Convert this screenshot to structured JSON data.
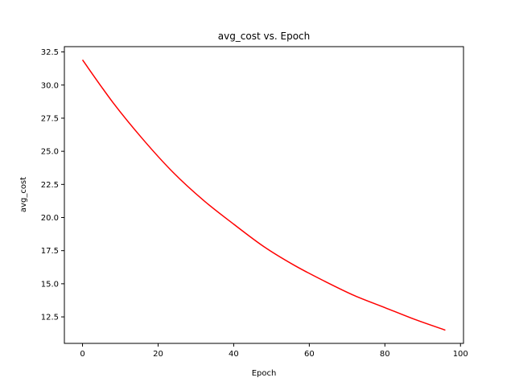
{
  "chart_data": {
    "type": "line",
    "title": "avg_cost vs. Epoch",
    "xlabel": "Epoch",
    "ylabel": "avg_cost",
    "xlim": [
      -4.8,
      100.8
    ],
    "ylim": [
      10.5,
      32.9
    ],
    "xticks": [
      0,
      20,
      40,
      60,
      80,
      100
    ],
    "yticks": [
      12.5,
      15.0,
      17.5,
      20.0,
      22.5,
      25.0,
      27.5,
      30.0,
      32.5
    ],
    "xtick_labels": [
      "0",
      "20",
      "40",
      "60",
      "80",
      "100"
    ],
    "ytick_labels": [
      "12.5",
      "15.0",
      "17.5",
      "20.0",
      "22.5",
      "25.0",
      "27.5",
      "30.0",
      "32.5"
    ],
    "grid": false,
    "series": [
      {
        "color": "#ff0000",
        "x": [
          0,
          8,
          16,
          24,
          32,
          40,
          48,
          56,
          64,
          72,
          80,
          88,
          96
        ],
        "y": [
          31.9,
          28.7,
          25.9,
          23.4,
          21.3,
          19.5,
          17.8,
          16.4,
          15.2,
          14.1,
          13.2,
          12.3,
          11.5
        ]
      }
    ]
  }
}
